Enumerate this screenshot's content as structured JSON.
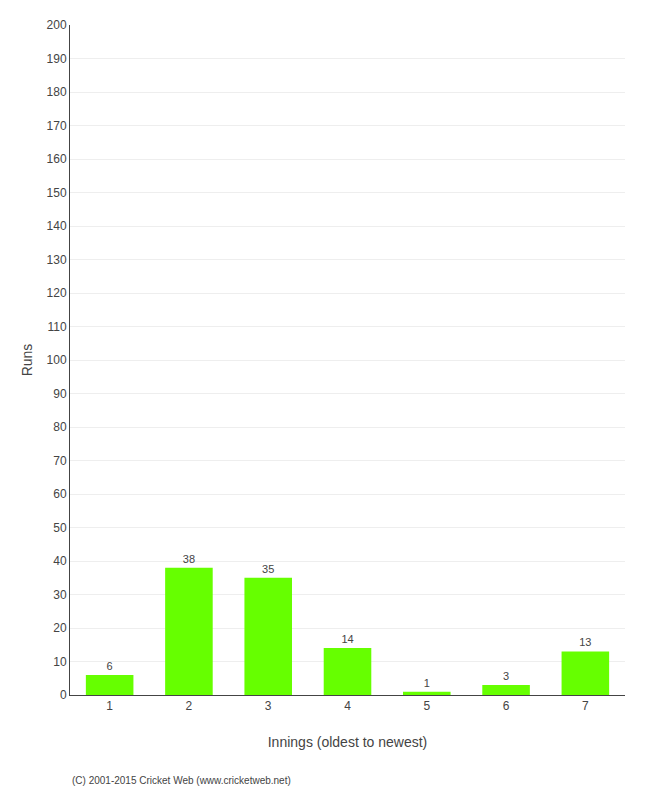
{
  "chart_data": {
    "type": "bar",
    "categories": [
      "1",
      "2",
      "3",
      "4",
      "5",
      "6",
      "7"
    ],
    "values": [
      6,
      38,
      35,
      14,
      1,
      3,
      13
    ],
    "color": "#66ff00",
    "xlabel": "Innings (oldest to newest)",
    "ylabel": "Runs",
    "ylim": [
      0,
      200
    ],
    "yticks": [
      0,
      10,
      20,
      30,
      40,
      50,
      60,
      70,
      80,
      90,
      100,
      110,
      120,
      130,
      140,
      150,
      160,
      170,
      180,
      190,
      200
    ],
    "grid": true,
    "data_labels": true,
    "annotations": [
      "(C) 2001-2015 Cricket Web (www.cricketweb.net)"
    ]
  }
}
